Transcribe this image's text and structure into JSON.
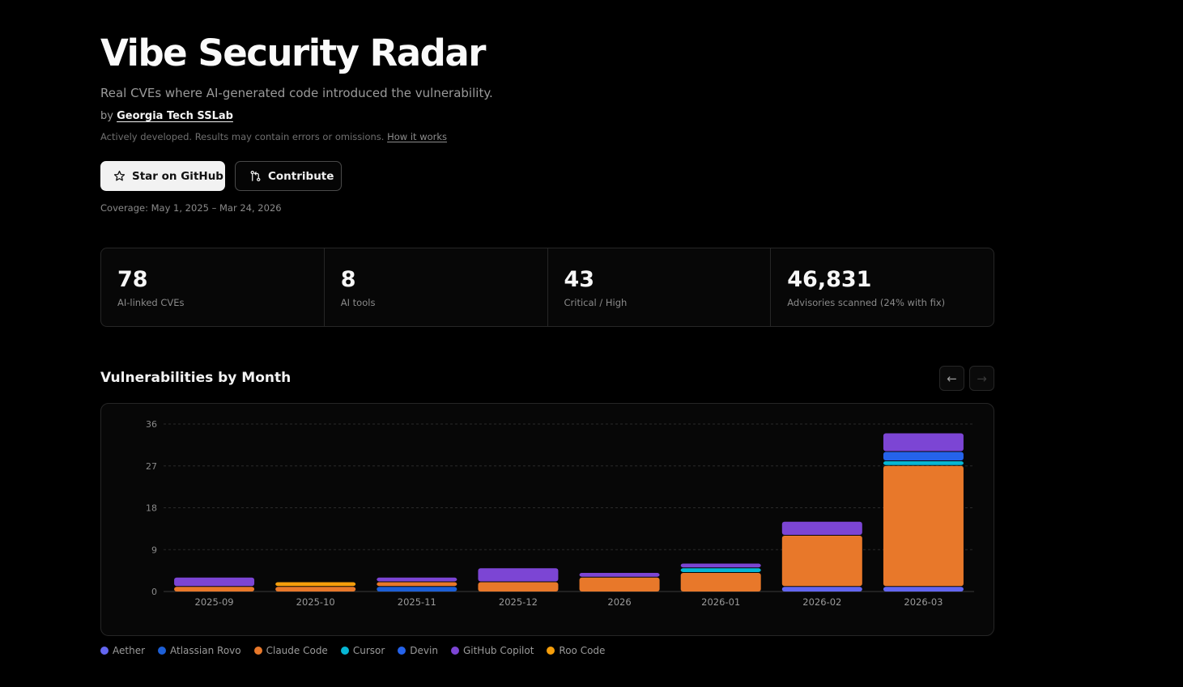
{
  "header": {
    "title": "Vibe Security Radar",
    "subtitle": "Real CVEs where AI-generated code introduced the vulnerability.",
    "by_prefix": "by",
    "org_link": "Georgia Tech SSLab",
    "notice": "Actively developed. Results may contain errors or omissions.",
    "how_link": "How it works"
  },
  "buttons": {
    "star_label": "Star on GitHub",
    "contribute_label": "Contribute"
  },
  "coverage": "Coverage: May 1, 2025 – Mar 24, 2026",
  "stats": [
    {
      "value": "78",
      "label": "AI-linked CVEs"
    },
    {
      "value": "8",
      "label": "AI tools"
    },
    {
      "value": "43",
      "label": "Critical / High"
    },
    {
      "value": "46,831",
      "label": "Advisories scanned (24% with fix)"
    }
  ],
  "section": {
    "title": "Vulnerabilities by Month",
    "prev_icon": "←",
    "next_icon": "→"
  },
  "colors": {
    "Aether": "#6366f1",
    "Atlassian Rovo": "#1d5fd6",
    "Claude Code": "#e8782a",
    "Cursor": "#06b6d4",
    "Devin": "#2563eb",
    "GitHub Copilot": "#7c45d4",
    "Roo Code": "#f59e0b"
  },
  "chart_data": {
    "type": "bar",
    "stacked": true,
    "categories": [
      "2025-09",
      "2025-10",
      "2025-11",
      "2025-12",
      "2026",
      "2026-01",
      "2026-02",
      "2026-03"
    ],
    "y_ticks": [
      0,
      9,
      18,
      27,
      36
    ],
    "ylim": [
      0,
      36
    ],
    "grid": true,
    "legend_position": "bottom-left",
    "series": [
      {
        "name": "Aether",
        "values": [
          0,
          0,
          0,
          0,
          0,
          0,
          1,
          1
        ]
      },
      {
        "name": "Atlassian Rovo",
        "values": [
          0,
          0,
          1,
          0,
          0,
          0,
          0,
          0
        ]
      },
      {
        "name": "Claude Code",
        "values": [
          1,
          1,
          1,
          2,
          3,
          4,
          11,
          26
        ]
      },
      {
        "name": "Cursor",
        "values": [
          0,
          0,
          0,
          0,
          0,
          1,
          0,
          1
        ]
      },
      {
        "name": "Devin",
        "values": [
          0,
          0,
          0,
          0,
          0,
          0,
          0,
          2
        ]
      },
      {
        "name": "GitHub Copilot",
        "values": [
          2,
          0,
          1,
          3,
          1,
          1,
          3,
          4
        ]
      },
      {
        "name": "Roo Code",
        "values": [
          0,
          1,
          0,
          0,
          0,
          0,
          0,
          0
        ]
      }
    ]
  }
}
